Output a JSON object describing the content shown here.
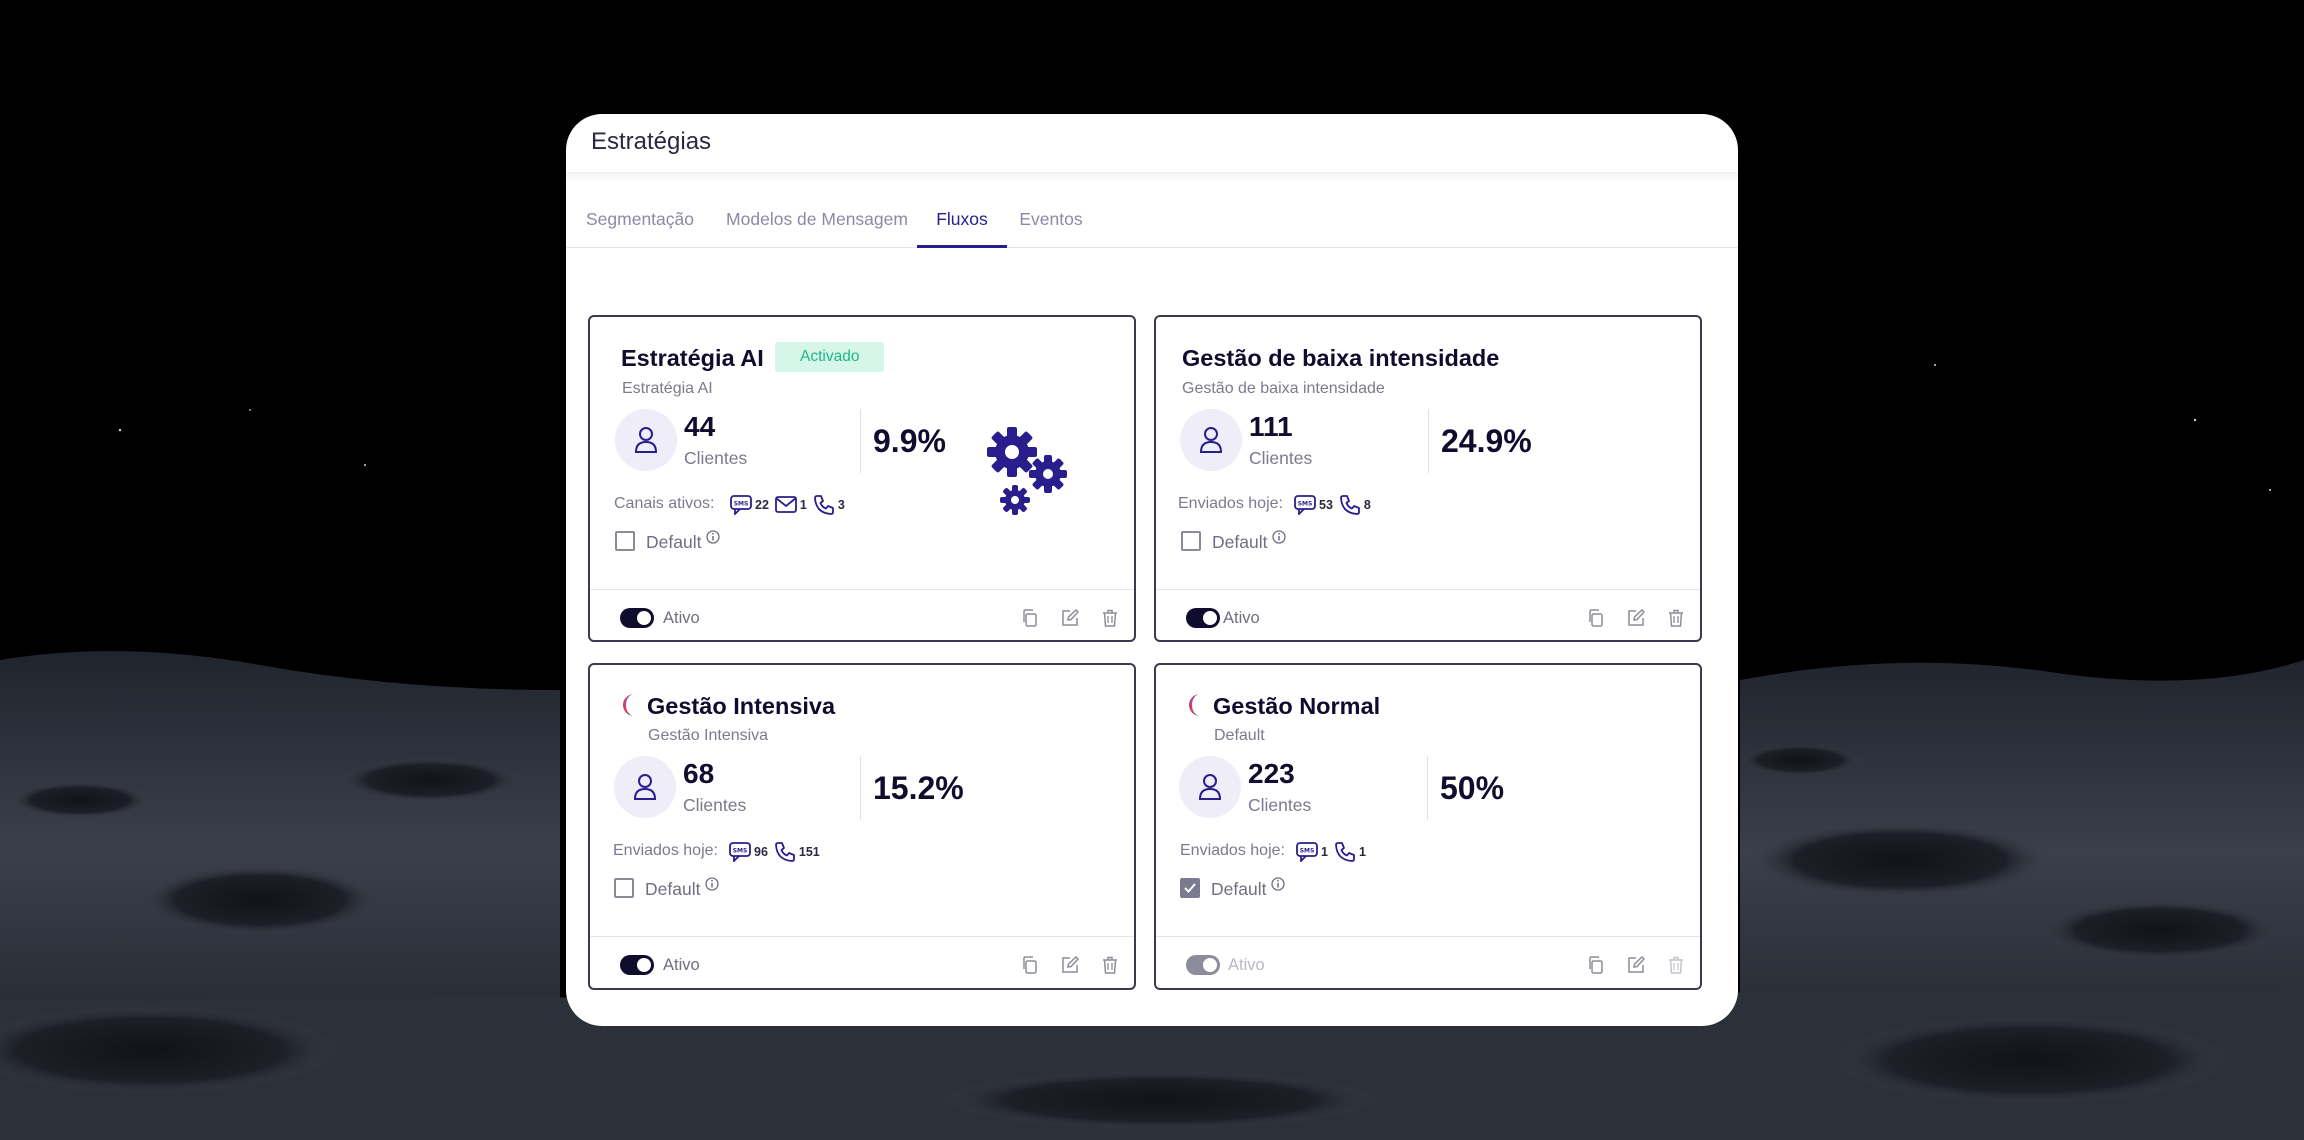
{
  "window": {
    "title": "Estratégias"
  },
  "tabs": [
    {
      "label": "Segmentação"
    },
    {
      "label": "Modelos de Mensagem"
    },
    {
      "label": "Fluxos",
      "active": true
    },
    {
      "label": "Eventos"
    }
  ],
  "cards": [
    {
      "title": "Estratégia AI",
      "badge": "Activado",
      "subtitle": "Estratégia AI",
      "count": "44",
      "count_label": "Clientes",
      "percent": "9.9%",
      "channels_label": "Canais ativos:",
      "channels": {
        "sms": "22",
        "email": "1",
        "phone": "3"
      },
      "default_label": "Default",
      "default_checked": false,
      "status_label": "Ativo",
      "active": true,
      "icon": "gears-icon"
    },
    {
      "title": "Gestão de baixa intensidade",
      "subtitle": "Gestão de baixa intensidade",
      "count": "111",
      "count_label": "Clientes",
      "percent": "24.9%",
      "channels_label": "Enviados hoje:",
      "channels": {
        "sms": "53",
        "phone": "8"
      },
      "default_label": "Default",
      "default_checked": false,
      "status_label": "Ativo",
      "active": true
    },
    {
      "title": "Gestão Intensiva",
      "subtitle": "Gestão Intensiva",
      "count": "68",
      "count_label": "Clientes",
      "percent": "15.2%",
      "channels_label": "Enviados hoje:",
      "channels": {
        "sms": "96",
        "phone": "151"
      },
      "default_label": "Default",
      "default_checked": false,
      "status_label": "Ativo",
      "active": true,
      "icon": "moon-icon"
    },
    {
      "title": "Gestão Normal",
      "subtitle": "Default",
      "count": "223",
      "count_label": "Clientes",
      "percent": "50%",
      "channels_label": "Enviados hoje:",
      "channels": {
        "sms": "1",
        "phone": "1"
      },
      "default_label": "Default",
      "default_checked": true,
      "status_label": "Ativo",
      "active": false,
      "icon": "moon-icon"
    }
  ],
  "colors": {
    "accent": "#2a1e8e",
    "dark": "#0f0c2e",
    "badge_bg": "#d7f6ea",
    "badge_text": "#1fb58a",
    "background": "#000000"
  }
}
